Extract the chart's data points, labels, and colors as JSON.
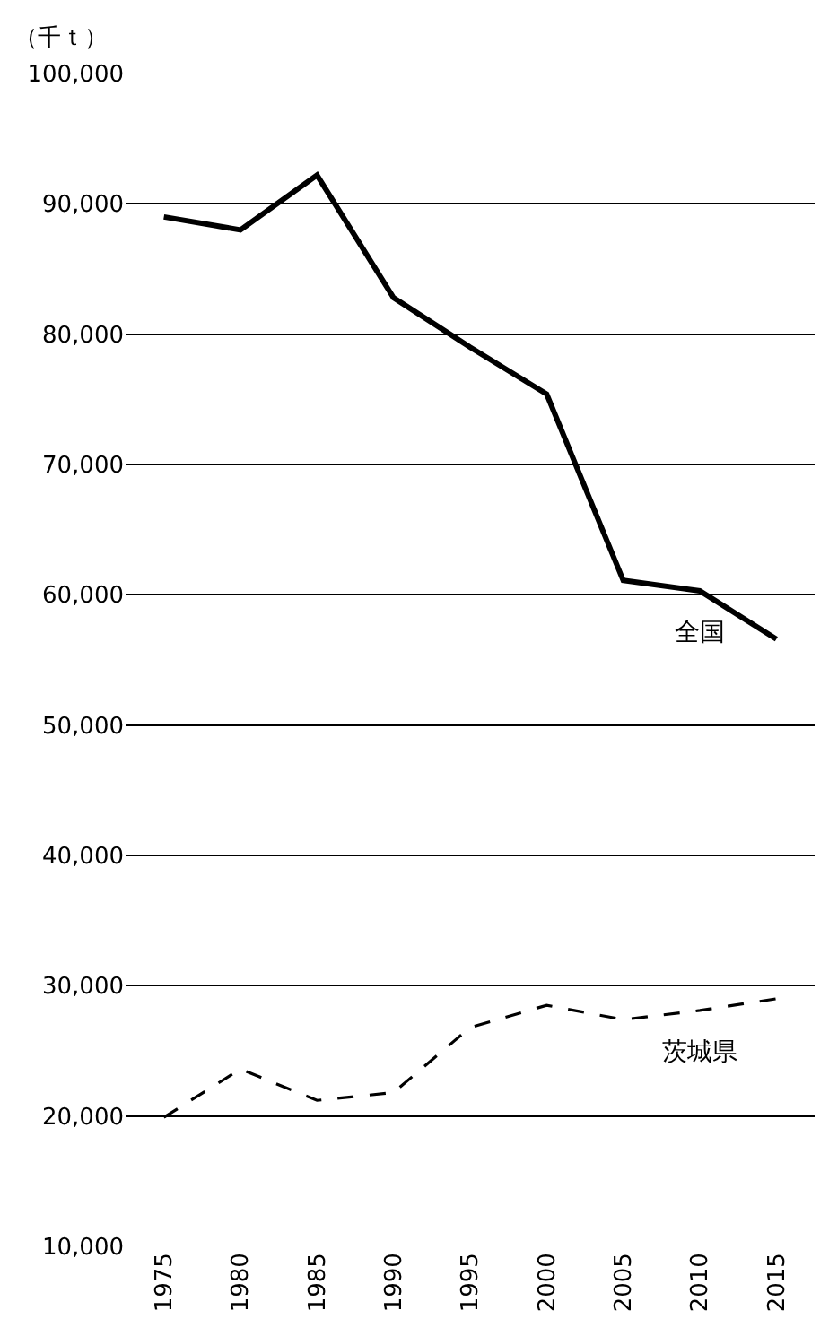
{
  "chart_data": {
    "type": "line",
    "ylabel": "（千ｔ）",
    "categories": [
      "1975",
      "1980",
      "1985",
      "1990",
      "1995",
      "2000",
      "2005",
      "2010",
      "2015"
    ],
    "series": [
      {
        "name": "全国",
        "color": "#000000",
        "line_style": "solid",
        "values": [
          89000,
          88000,
          92200,
          82800,
          79000,
          75400,
          61100,
          60300,
          56600
        ]
      },
      {
        "name": "茨城県",
        "color": "#000000",
        "line_style": "dashed",
        "values": [
          19900,
          23600,
          21200,
          21800,
          26800,
          28500,
          27400,
          28100,
          29000
        ]
      }
    ],
    "ylim": [
      10000,
      100000
    ],
    "yticks": [
      {
        "value": 10000,
        "label": "10,000"
      },
      {
        "value": 20000,
        "label": "20,000"
      },
      {
        "value": 30000,
        "label": "30,000"
      },
      {
        "value": 40000,
        "label": "40,000"
      },
      {
        "value": 50000,
        "label": "50,000"
      },
      {
        "value": 60000,
        "label": "60,000"
      },
      {
        "value": 70000,
        "label": "70,000"
      },
      {
        "value": 80000,
        "label": "80,000"
      },
      {
        "value": 90000,
        "label": "90,000"
      },
      {
        "value": 100000,
        "label": "100,000"
      }
    ],
    "grid": "y",
    "legend": false,
    "marker": "none"
  }
}
